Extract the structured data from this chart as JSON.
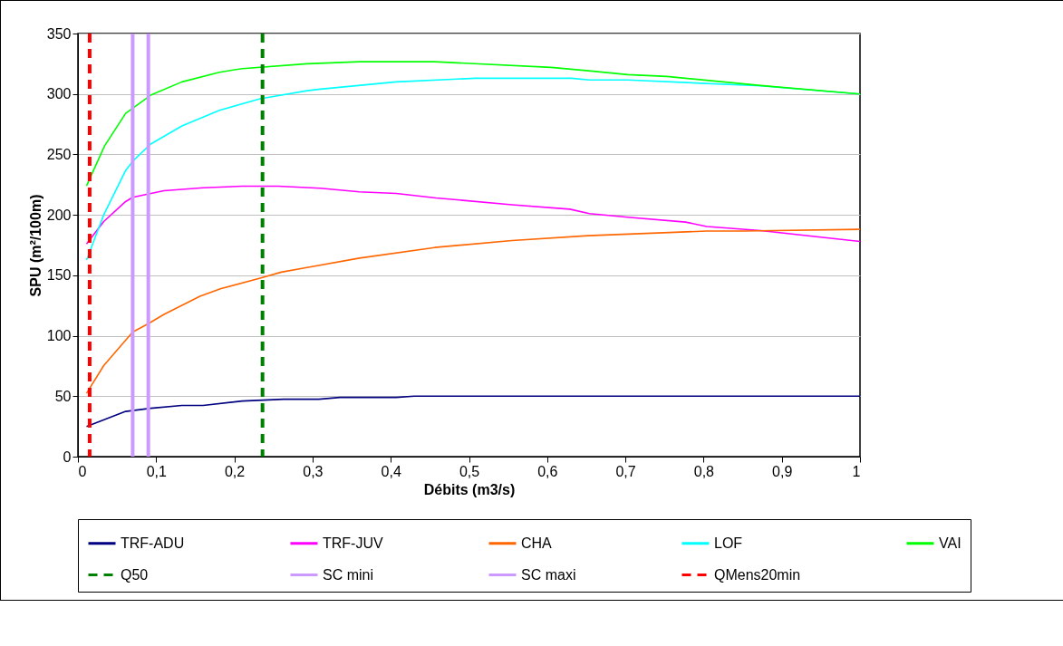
{
  "chart_data": {
    "type": "line",
    "xlabel": "Débits (m3/s)",
    "ylabel": "SPU (m²/100m)",
    "xlim": [
      0,
      1
    ],
    "ylim": [
      0,
      350
    ],
    "xticks": [
      0,
      {
        "value": 0.1,
        "label": "0,1"
      },
      {
        "value": 0.2,
        "label": "0,2"
      },
      {
        "value": 0.3,
        "label": "0,3"
      },
      {
        "value": 0.4,
        "label": "0,4"
      },
      {
        "value": 0.5,
        "label": "0,5"
      },
      {
        "value": 0.6,
        "label": "0,6"
      },
      {
        "value": 0.7,
        "label": "0,7"
      },
      {
        "value": 0.8,
        "label": "0,8"
      },
      {
        "value": 0.9,
        "label": "0,9"
      },
      1
    ],
    "yticks": [
      0,
      50,
      100,
      150,
      200,
      250,
      300,
      350
    ],
    "grid": "y",
    "legend": "bottom",
    "line_style": "solid",
    "marker": "none",
    "series": [
      {
        "name": "TRF-ADU",
        "color": "#000080",
        "x": [
          0.011,
          0.061,
          0.093,
          0.133,
          0.16,
          0.21,
          0.263,
          0.308,
          0.335,
          0.407,
          0.43,
          1
        ],
        "values": [
          25,
          37.4,
          40,
          42.4,
          42.4,
          46,
          47.5,
          47.5,
          49,
          49,
          50,
          50
        ]
      },
      {
        "name": "TRF-JUV",
        "color": "#ff00ff",
        "x": [
          0.011,
          0.033,
          0.061,
          0.07,
          0.11,
          0.16,
          0.21,
          0.256,
          0.31,
          0.36,
          0.407,
          0.458,
          0.555,
          0.629,
          0.654,
          0.703,
          0.777,
          0.804,
          0.873,
          1
        ],
        "values": [
          176,
          194.5,
          211,
          214.5,
          220,
          222.4,
          223.7,
          223.7,
          222,
          219,
          217.7,
          214,
          208.4,
          204.7,
          201,
          198,
          194,
          190.4,
          187,
          178
        ]
      },
      {
        "name": "CHA",
        "color": "#ff6600",
        "x": [
          0.011,
          0.033,
          0.07,
          0.09,
          0.11,
          0.156,
          0.183,
          0.233,
          0.26,
          0.293,
          0.36,
          0.456,
          0.555,
          0.652,
          0.804,
          0.851,
          1
        ],
        "values": [
          52.4,
          75.3,
          103,
          110,
          117.7,
          132.7,
          139,
          147.6,
          152.6,
          156.4,
          164.2,
          173,
          178.8,
          182.8,
          186.6,
          186.6,
          188
        ]
      },
      {
        "name": "LOF",
        "color": "#00ffff",
        "x": [
          0.011,
          0.033,
          0.061,
          0.071,
          0.093,
          0.133,
          0.181,
          0.233,
          0.293,
          0.31,
          0.407,
          0.508,
          0.631,
          0.654,
          0.703,
          0.873,
          1
        ],
        "values": [
          162.6,
          200,
          236.7,
          245,
          258.6,
          273.6,
          286.5,
          296,
          302.7,
          304,
          310,
          313,
          313,
          311.6,
          311.6,
          306.7,
          300
        ]
      },
      {
        "name": "VAI",
        "color": "#00ff00",
        "x": [
          0.011,
          0.034,
          0.061,
          0.093,
          0.133,
          0.181,
          0.21,
          0.293,
          0.36,
          0.456,
          0.605,
          0.656,
          0.703,
          0.753,
          0.873,
          1
        ],
        "values": [
          224,
          257,
          284,
          299,
          310,
          318,
          321,
          325,
          326.7,
          326.7,
          322,
          319,
          316,
          314.5,
          307,
          300
        ]
      }
    ],
    "ref_lines": [
      {
        "axis": "x",
        "value": 0.236,
        "label": "Q50",
        "color": "#008000",
        "line_style": "dashed"
      },
      {
        "axis": "x",
        "value": 0.07,
        "label": "SC mini",
        "color": "#cc99ff",
        "line_style": "solid"
      },
      {
        "axis": "x",
        "value": 0.09,
        "label": "SC maxi",
        "color": "#cc99ff",
        "line_style": "solid"
      },
      {
        "axis": "x",
        "value": 0.015,
        "label": "QMens20min",
        "color": "#ff0000",
        "line_style": "dashed"
      }
    ]
  }
}
